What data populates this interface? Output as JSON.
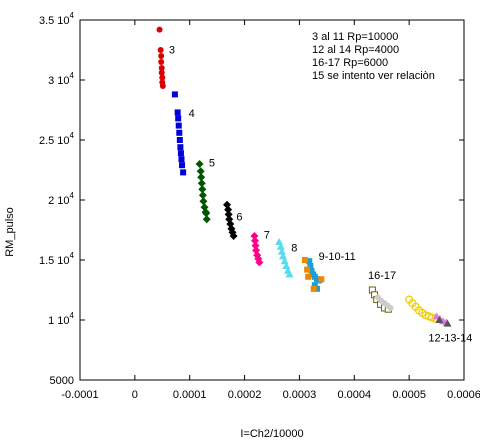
{
  "chart_data": {
    "type": "scatter",
    "title": "",
    "xlabel": "I=Ch2/10000",
    "ylabel": "RM_pulso",
    "xlim": [
      -0.0001,
      0.0006
    ],
    "ylim": [
      5000,
      35000
    ],
    "x_ticks": [
      {
        "value": -0.0001,
        "label": "-0.0001"
      },
      {
        "value": 0,
        "label": "0"
      },
      {
        "value": 0.0001,
        "label": "0.0001"
      },
      {
        "value": 0.0002,
        "label": "0.0002"
      },
      {
        "value": 0.0003,
        "label": "0.0003"
      },
      {
        "value": 0.0004,
        "label": "0.0004"
      },
      {
        "value": 0.0005,
        "label": "0.0005"
      },
      {
        "value": 0.0006,
        "label": "0.0006"
      }
    ],
    "y_ticks": [
      {
        "value": 5000,
        "mant": "5000",
        "exp": ""
      },
      {
        "value": 10000,
        "mant": "1 10",
        "exp": "4"
      },
      {
        "value": 15000,
        "mant": "1.5 10",
        "exp": "4"
      },
      {
        "value": 20000,
        "mant": "2 10",
        "exp": "4"
      },
      {
        "value": 25000,
        "mant": "2.5 10",
        "exp": "4"
      },
      {
        "value": 30000,
        "mant": "3 10",
        "exp": "4"
      },
      {
        "value": 35000,
        "mant": "3.5 10",
        "exp": "4"
      }
    ],
    "grid": false,
    "legend_lines": [
      "3 al 11 Rp=10000",
      "12 al 14 Rp=4000",
      "16-17 Rp=6000",
      " 15 se intento ver relaciòn"
    ],
    "series": [
      {
        "name": "3",
        "color": "#dd0000",
        "marker": "circle",
        "label": {
          "text": "3",
          "x": 6.2e-05,
          "y": 32200
        },
        "points": [
          [
            4.5e-05,
            34200
          ],
          [
            4.7e-05,
            32500
          ],
          [
            4.8e-05,
            32000
          ],
          [
            4.8e-05,
            31500
          ],
          [
            4.9e-05,
            31000
          ],
          [
            4.9e-05,
            30600
          ],
          [
            5e-05,
            30200
          ],
          [
            5e-05,
            29800
          ],
          [
            5.1e-05,
            29500
          ]
        ]
      },
      {
        "name": "4",
        "color": "#0000dd",
        "marker": "square",
        "label": {
          "text": "4",
          "x": 9.8e-05,
          "y": 26900
        },
        "points": [
          [
            7.3e-05,
            28800
          ],
          [
            7.8e-05,
            27300
          ],
          [
            7.9e-05,
            26800
          ],
          [
            8e-05,
            26200
          ],
          [
            8.1e-05,
            25600
          ],
          [
            8.2e-05,
            25000
          ],
          [
            8.3e-05,
            24400
          ],
          [
            8.4e-05,
            23900
          ],
          [
            8.5e-05,
            23400
          ],
          [
            8.6e-05,
            22900
          ],
          [
            8.8e-05,
            22300
          ]
        ]
      },
      {
        "name": "5",
        "color": "#005500",
        "marker": "diamond",
        "label": {
          "text": "5",
          "x": 0.000135,
          "y": 22800
        },
        "points": [
          [
            0.000118,
            23000
          ],
          [
            0.00012,
            22400
          ],
          [
            0.000121,
            21900
          ],
          [
            0.000122,
            21400
          ],
          [
            0.000123,
            20900
          ],
          [
            0.000124,
            20400
          ],
          [
            0.000125,
            19900
          ],
          [
            0.000127,
            19400
          ],
          [
            0.000129,
            19000
          ],
          [
            0.00013,
            18900
          ],
          [
            0.000131,
            18400
          ]
        ]
      },
      {
        "name": "6",
        "color": "#000000",
        "marker": "diamond",
        "label": {
          "text": "6",
          "x": 0.000185,
          "y": 18300
        },
        "points": [
          [
            0.000168,
            19600
          ],
          [
            0.00017,
            19200
          ],
          [
            0.000171,
            18800
          ],
          [
            0.000172,
            18400
          ],
          [
            0.000174,
            18000
          ],
          [
            0.000176,
            17600
          ],
          [
            0.000178,
            17300
          ],
          [
            0.00018,
            17000
          ]
        ]
      },
      {
        "name": "7",
        "color": "#ff0088",
        "marker": "diamond",
        "label": {
          "text": "7",
          "x": 0.000235,
          "y": 16800
        },
        "points": [
          [
            0.000218,
            17000
          ],
          [
            0.000219,
            16600
          ],
          [
            0.00022,
            16200
          ],
          [
            0.000221,
            15800
          ],
          [
            0.000223,
            15400
          ],
          [
            0.000225,
            15100
          ],
          [
            0.000227,
            14800
          ]
        ]
      },
      {
        "name": "8",
        "color": "#55ddee",
        "marker": "triangle",
        "label": {
          "text": "8",
          "x": 0.000285,
          "y": 15700
        },
        "points": [
          [
            0.000263,
            16500
          ],
          [
            0.000266,
            16100
          ],
          [
            0.000268,
            15700
          ],
          [
            0.00027,
            15300
          ],
          [
            0.000273,
            14900
          ],
          [
            0.000276,
            14500
          ],
          [
            0.000279,
            14100
          ],
          [
            0.000282,
            13800
          ]
        ]
      },
      {
        "name": "9-10-11",
        "color": "#1a9fd8",
        "marker": "square",
        "label": {
          "text": "9-10-11",
          "x": 0.000335,
          "y": 15000
        },
        "points": [
          [
            0.000318,
            14900
          ],
          [
            0.00032,
            14500
          ],
          [
            0.000322,
            14100
          ],
          [
            0.000325,
            13800
          ],
          [
            0.000328,
            13600
          ],
          [
            0.000332,
            13400
          ],
          [
            0.000336,
            13300
          ],
          [
            0.000328,
            12900
          ],
          [
            0.000332,
            12600
          ]
        ]
      },
      {
        "name": "9-10-11 orange",
        "color": "#ee8800",
        "marker": "square",
        "points": [
          [
            0.00031,
            15000
          ],
          [
            0.000314,
            14200
          ],
          [
            0.000316,
            13600
          ],
          [
            0.000326,
            12600
          ],
          [
            0.00034,
            13400
          ]
        ]
      },
      {
        "name": "16-17",
        "color": "#666600",
        "marker": "open-square",
        "label": {
          "text": "16-17",
          "x": 0.000425,
          "y": 13400
        },
        "points": [
          [
            0.000433,
            12500
          ],
          [
            0.000437,
            12100
          ],
          [
            0.000441,
            11700
          ],
          [
            0.000448,
            11300
          ],
          [
            0.000455,
            11000
          ],
          [
            0.000462,
            10900
          ]
        ]
      },
      {
        "name": "16-17 light",
        "color": "#cccccc",
        "marker": "circle",
        "points": [
          [
            0.000443,
            11900
          ],
          [
            0.000449,
            11600
          ],
          [
            0.000455,
            11400
          ],
          [
            0.000461,
            11200
          ],
          [
            0.000466,
            11000
          ]
        ]
      },
      {
        "name": "12-13-14",
        "color": "#eecc00",
        "marker": "open-circle",
        "label": {
          "text": "12-13-14",
          "x": 0.000535,
          "y": 8200
        },
        "points": [
          [
            0.0005,
            11700
          ],
          [
            0.000506,
            11400
          ],
          [
            0.000512,
            11100
          ],
          [
            0.000518,
            10800
          ],
          [
            0.000524,
            10600
          ],
          [
            0.00053,
            10400
          ],
          [
            0.000536,
            10300
          ],
          [
            0.000542,
            10200
          ],
          [
            0.000548,
            10100
          ]
        ]
      },
      {
        "name": "12-13-14 violet",
        "color": "#dd77dd",
        "marker": "triangle",
        "points": [
          [
            0.00055,
            10300
          ],
          [
            0.000556,
            10100
          ],
          [
            0.000562,
            9900
          ],
          [
            0.000568,
            9800
          ]
        ]
      },
      {
        "name": "12-13-14 grey",
        "color": "#555555",
        "marker": "triangle",
        "points": [
          [
            0.000555,
            10000
          ],
          [
            0.00057,
            9700
          ]
        ]
      }
    ]
  }
}
